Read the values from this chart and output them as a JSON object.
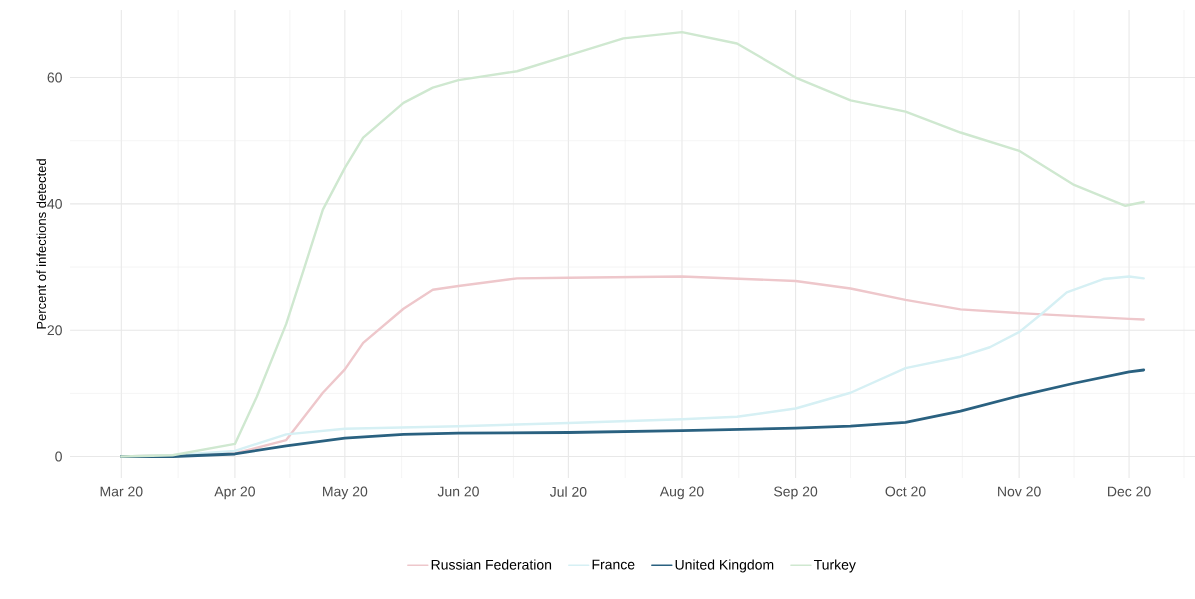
{
  "chart_data": {
    "type": "line",
    "ylabel": "Percent of infections detected",
    "xlim": [
      "2020-02-16",
      "2020-12-19"
    ],
    "ylim": [
      -3.4,
      70.7
    ],
    "yticks": [
      0,
      20,
      40,
      60
    ],
    "xticks": [
      {
        "value": "2020-03-01",
        "label": "Mar 20"
      },
      {
        "value": "2020-04-01",
        "label": "Apr 20"
      },
      {
        "value": "2020-05-01",
        "label": "May 20"
      },
      {
        "value": "2020-06-01",
        "label": "Jun 20"
      },
      {
        "value": "2020-07-01",
        "label": "Jul 20"
      },
      {
        "value": "2020-08-01",
        "label": "Aug 20"
      },
      {
        "value": "2020-09-01",
        "label": "Sep 20"
      },
      {
        "value": "2020-10-01",
        "label": "Oct 20"
      },
      {
        "value": "2020-11-01",
        "label": "Nov 20"
      },
      {
        "value": "2020-12-01",
        "label": "Dec 20"
      }
    ],
    "grid": true,
    "legend": "bottom",
    "marker": "none",
    "line_style": "solid",
    "series": [
      {
        "name": "Russian Federation",
        "color": "#eec7cb",
        "x": [
          "2020-03-01",
          "2020-03-15",
          "2020-04-01",
          "2020-04-15",
          "2020-04-25",
          "2020-05-01",
          "2020-05-06",
          "2020-05-17",
          "2020-05-25",
          "2020-06-01",
          "2020-06-17",
          "2020-07-01",
          "2020-08-01",
          "2020-09-01",
          "2020-09-16",
          "2020-10-01",
          "2020-10-16",
          "2020-11-01",
          "2020-12-01",
          "2020-12-05"
        ],
        "values": [
          0,
          0.2,
          0.5,
          2.6,
          10.1,
          13.8,
          18,
          23.4,
          26.4,
          27,
          28.2,
          28.3,
          28.5,
          27.8,
          26.6,
          24.8,
          23.3,
          22.7,
          21.8,
          21.7
        ]
      },
      {
        "name": "France",
        "color": "#d6f0f4",
        "x": [
          "2020-03-01",
          "2020-03-15",
          "2020-04-01",
          "2020-04-15",
          "2020-05-01",
          "2020-06-01",
          "2020-07-01",
          "2020-08-01",
          "2020-08-16",
          "2020-09-01",
          "2020-09-16",
          "2020-10-01",
          "2020-10-16",
          "2020-10-24",
          "2020-11-01",
          "2020-11-08",
          "2020-11-14",
          "2020-11-24",
          "2020-12-01",
          "2020-12-05"
        ],
        "values": [
          0,
          0.2,
          0.9,
          3.5,
          4.4,
          4.8,
          5.3,
          5.9,
          6.3,
          7.6,
          10.1,
          14,
          15.8,
          17.3,
          19.7,
          23,
          26,
          28.1,
          28.5,
          28.2
        ]
      },
      {
        "name": "United Kingdom",
        "color": "#2a6180",
        "x": [
          "2020-03-01",
          "2020-03-15",
          "2020-04-01",
          "2020-04-15",
          "2020-05-01",
          "2020-05-17",
          "2020-06-01",
          "2020-07-01",
          "2020-08-01",
          "2020-09-01",
          "2020-09-16",
          "2020-10-01",
          "2020-10-16",
          "2020-11-01",
          "2020-11-16",
          "2020-12-01",
          "2020-12-05"
        ],
        "values": [
          0,
          0,
          0.4,
          1.7,
          2.9,
          3.5,
          3.7,
          3.8,
          4.1,
          4.5,
          4.8,
          5.4,
          7.2,
          9.6,
          11.6,
          13.4,
          13.7
        ]
      },
      {
        "name": "Turkey",
        "color": "#cfe8d0",
        "x": [
          "2020-03-01",
          "2020-03-15",
          "2020-04-01",
          "2020-04-07",
          "2020-04-15",
          "2020-04-20",
          "2020-04-25",
          "2020-05-01",
          "2020-05-06",
          "2020-05-17",
          "2020-05-25",
          "2020-06-01",
          "2020-06-17",
          "2020-07-01",
          "2020-07-16",
          "2020-08-01",
          "2020-08-16",
          "2020-09-01",
          "2020-09-16",
          "2020-10-01",
          "2020-10-16",
          "2020-11-01",
          "2020-11-16",
          "2020-11-30",
          "2020-12-05"
        ],
        "values": [
          0,
          0.2,
          2,
          9.5,
          21,
          30,
          39.1,
          45.7,
          50.5,
          56,
          58.4,
          59.6,
          61,
          63.5,
          66.2,
          67.2,
          65.4,
          60,
          56.4,
          54.6,
          51.3,
          48.4,
          43,
          39.7,
          40.3
        ]
      }
    ]
  }
}
